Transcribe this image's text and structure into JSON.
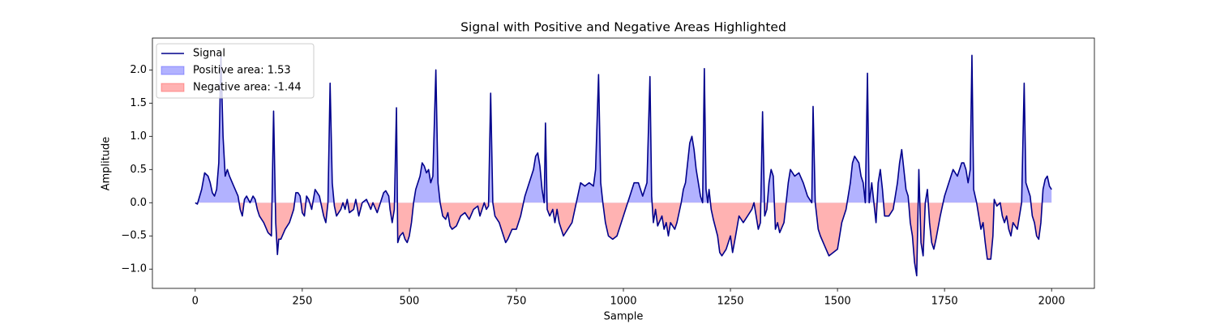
{
  "chart_data": {
    "type": "line",
    "title": "Signal with Positive and Negative Areas Highlighted",
    "xlabel": "Sample",
    "ylabel": "Amplitude",
    "x": [
      0,
      5,
      15,
      22,
      30,
      35,
      40,
      45,
      50,
      55,
      60,
      65,
      70,
      75,
      80,
      90,
      100,
      105,
      110,
      115,
      120,
      128,
      135,
      140,
      145,
      150,
      160,
      170,
      178,
      183,
      188,
      192,
      195,
      200,
      210,
      220,
      230,
      235,
      240,
      245,
      250,
      255,
      260,
      265,
      272,
      280,
      290,
      300,
      305,
      310,
      315,
      320,
      325,
      330,
      340,
      345,
      350,
      355,
      360,
      370,
      375,
      382,
      390,
      400,
      410,
      415,
      425,
      430,
      440,
      445,
      452,
      455,
      460,
      465,
      470,
      473,
      478,
      485,
      490,
      495,
      500,
      505,
      510,
      515,
      520,
      525,
      530,
      535,
      540,
      545,
      550,
      555,
      562,
      567,
      572,
      578,
      585,
      590,
      595,
      600,
      610,
      620,
      630,
      640,
      650,
      660,
      665,
      670,
      675,
      680,
      685,
      690,
      695,
      700,
      710,
      720,
      725,
      730,
      740,
      750,
      760,
      770,
      780,
      790,
      795,
      800,
      805,
      810,
      815,
      818,
      822,
      828,
      835,
      840,
      845,
      850,
      860,
      870,
      880,
      890,
      900,
      910,
      920,
      930,
      935,
      942,
      947,
      952,
      958,
      965,
      975,
      985,
      995,
      1005,
      1015,
      1025,
      1035,
      1045,
      1055,
      1062,
      1066,
      1070,
      1075,
      1080,
      1090,
      1095,
      1100,
      1105,
      1110,
      1120,
      1125,
      1135,
      1140,
      1145,
      1150,
      1155,
      1160,
      1165,
      1170,
      1175,
      1180,
      1185,
      1189,
      1193,
      1197,
      1200,
      1205,
      1210,
      1220,
      1225,
      1230,
      1240,
      1250,
      1255,
      1262,
      1270,
      1280,
      1290,
      1300,
      1305,
      1310,
      1315,
      1320,
      1325,
      1330,
      1335,
      1340,
      1345,
      1350,
      1355,
      1360,
      1365,
      1375,
      1380,
      1385,
      1390,
      1400,
      1410,
      1420,
      1430,
      1440,
      1443,
      1448,
      1455,
      1460,
      1470,
      1480,
      1490,
      1500,
      1505,
      1510,
      1520,
      1530,
      1535,
      1540,
      1550,
      1555,
      1560,
      1565,
      1570,
      1574,
      1580,
      1585,
      1590,
      1595,
      1600,
      1605,
      1610,
      1620,
      1630,
      1640,
      1645,
      1650,
      1655,
      1660,
      1665,
      1670,
      1675,
      1680,
      1685,
      1690,
      1695,
      1700,
      1705,
      1710,
      1715,
      1720,
      1725,
      1730,
      1740,
      1750,
      1760,
      1770,
      1780,
      1790,
      1795,
      1800,
      1805,
      1810,
      1814,
      1818,
      1825,
      1830,
      1835,
      1840,
      1845,
      1850,
      1858,
      1863,
      1866,
      1872,
      1880,
      1885,
      1890,
      1895,
      1900,
      1905,
      1910,
      1920,
      1930,
      1936,
      1940,
      1945,
      1950,
      1955,
      1960,
      1965,
      1970,
      1975,
      1980,
      1985,
      1990,
      1995,
      2000
    ],
    "series": [
      {
        "name": "Signal",
        "color": "#00008b",
        "values": [
          0.0,
          -0.02,
          0.2,
          0.45,
          0.4,
          0.3,
          0.15,
          0.1,
          0.2,
          0.6,
          2.2,
          1.0,
          0.4,
          0.5,
          0.4,
          0.25,
          0.1,
          -0.1,
          -0.2,
          0.05,
          0.1,
          0.0,
          0.1,
          0.05,
          -0.1,
          -0.2,
          -0.3,
          -0.45,
          -0.5,
          1.38,
          -0.3,
          -0.78,
          -0.55,
          -0.55,
          -0.4,
          -0.3,
          -0.1,
          0.15,
          0.15,
          0.1,
          -0.15,
          -0.2,
          0.1,
          0.05,
          -0.1,
          0.2,
          0.1,
          -0.2,
          -0.3,
          0.0,
          1.8,
          0.3,
          -0.05,
          -0.2,
          -0.1,
          0.0,
          -0.1,
          0.05,
          -0.15,
          -0.1,
          0.05,
          -0.2,
          0.0,
          0.05,
          -0.1,
          0.0,
          -0.15,
          -0.05,
          0.15,
          0.18,
          0.1,
          -0.1,
          -0.3,
          -0.1,
          1.43,
          -0.6,
          -0.5,
          -0.45,
          -0.55,
          -0.6,
          -0.5,
          -0.3,
          0.0,
          0.2,
          0.3,
          0.4,
          0.6,
          0.55,
          0.45,
          0.5,
          0.3,
          0.4,
          2.0,
          0.3,
          0.0,
          -0.2,
          -0.25,
          -0.15,
          -0.35,
          -0.4,
          -0.35,
          -0.2,
          -0.15,
          -0.25,
          -0.1,
          -0.05,
          -0.2,
          -0.1,
          0.0,
          -0.1,
          -0.05,
          1.65,
          0.0,
          -0.2,
          -0.3,
          -0.5,
          -0.6,
          -0.55,
          -0.4,
          -0.4,
          -0.2,
          0.1,
          0.3,
          0.5,
          0.7,
          0.75,
          0.55,
          0.2,
          0.0,
          1.2,
          -0.1,
          -0.2,
          -0.1,
          -0.3,
          -0.1,
          -0.3,
          -0.5,
          -0.4,
          -0.3,
          0.0,
          0.3,
          0.25,
          0.3,
          0.25,
          0.5,
          1.93,
          0.3,
          0.0,
          -0.3,
          -0.5,
          -0.55,
          -0.5,
          -0.3,
          -0.1,
          0.1,
          0.3,
          0.3,
          0.1,
          0.3,
          1.9,
          0.1,
          -0.3,
          -0.1,
          -0.35,
          -0.2,
          -0.4,
          -0.3,
          -0.5,
          -0.3,
          -0.4,
          -0.3,
          0.0,
          0.2,
          0.3,
          0.6,
          0.9,
          1.0,
          0.8,
          0.5,
          0.3,
          0.1,
          0.0,
          2.02,
          0.2,
          0.0,
          0.2,
          -0.1,
          -0.25,
          -0.5,
          -0.75,
          -0.8,
          -0.7,
          -0.5,
          -0.75,
          -0.5,
          -0.2,
          -0.3,
          -0.2,
          -0.1,
          0.0,
          -0.2,
          -0.4,
          -0.3,
          1.37,
          -0.2,
          -0.1,
          0.3,
          0.5,
          0.4,
          -0.4,
          -0.3,
          -0.45,
          -0.3,
          0.0,
          0.3,
          0.5,
          0.4,
          0.45,
          0.3,
          0.1,
          0.0,
          1.45,
          0.0,
          -0.4,
          -0.5,
          -0.65,
          -0.8,
          -0.75,
          -0.7,
          -0.5,
          -0.3,
          -0.1,
          0.3,
          0.6,
          0.7,
          0.6,
          0.4,
          0.3,
          0.0,
          1.95,
          0.0,
          0.3,
          0.0,
          -0.3,
          0.3,
          0.5,
          0.2,
          -0.2,
          -0.2,
          -0.1,
          0.3,
          0.6,
          0.8,
          0.5,
          0.2,
          0.1,
          -0.3,
          -0.5,
          -0.9,
          -1.1,
          0.5,
          -0.6,
          -0.8,
          0.0,
          0.2,
          -0.3,
          -0.6,
          -0.7,
          -0.55,
          -0.2,
          0.1,
          0.3,
          0.5,
          0.4,
          0.6,
          0.6,
          0.5,
          0.3,
          0.5,
          2.22,
          0.2,
          0.0,
          -0.2,
          -0.4,
          -0.3,
          -0.6,
          -0.85,
          -0.85,
          -0.5,
          0.05,
          -0.05,
          0.0,
          -0.2,
          -0.3,
          -0.2,
          -0.4,
          -0.5,
          -0.3,
          -0.4,
          0.0,
          1.8,
          0.3,
          0.2,
          0.1,
          -0.2,
          -0.3,
          -0.5,
          -0.55,
          -0.3,
          0.2,
          0.35,
          0.4,
          0.25,
          0.2
        ]
      }
    ],
    "fills": [
      {
        "name": "Positive area: 1.53",
        "color": "#0000ff",
        "side": "positive"
      },
      {
        "name": "Negative area: -1.44",
        "color": "#ff0000",
        "side": "negative"
      }
    ],
    "fill_alpha": 0.3,
    "legend": "upper left",
    "xlim": [
      -100,
      2100
    ],
    "xticks": [
      0,
      250,
      500,
      750,
      1000,
      1250,
      1500,
      1750,
      2000
    ],
    "ylim": [
      -1.29,
      2.48
    ],
    "yticks": [
      {
        "value": -1,
        "label": "−1.0"
      },
      {
        "value": -0.5,
        "label": "−0.5"
      },
      {
        "value": 0,
        "label": "0.0"
      },
      {
        "value": 0.5,
        "label": "0.5"
      },
      {
        "value": 1,
        "label": "1.0"
      },
      {
        "value": 1.5,
        "label": "1.5"
      },
      {
        "value": 2,
        "label": "2.0"
      }
    ]
  }
}
